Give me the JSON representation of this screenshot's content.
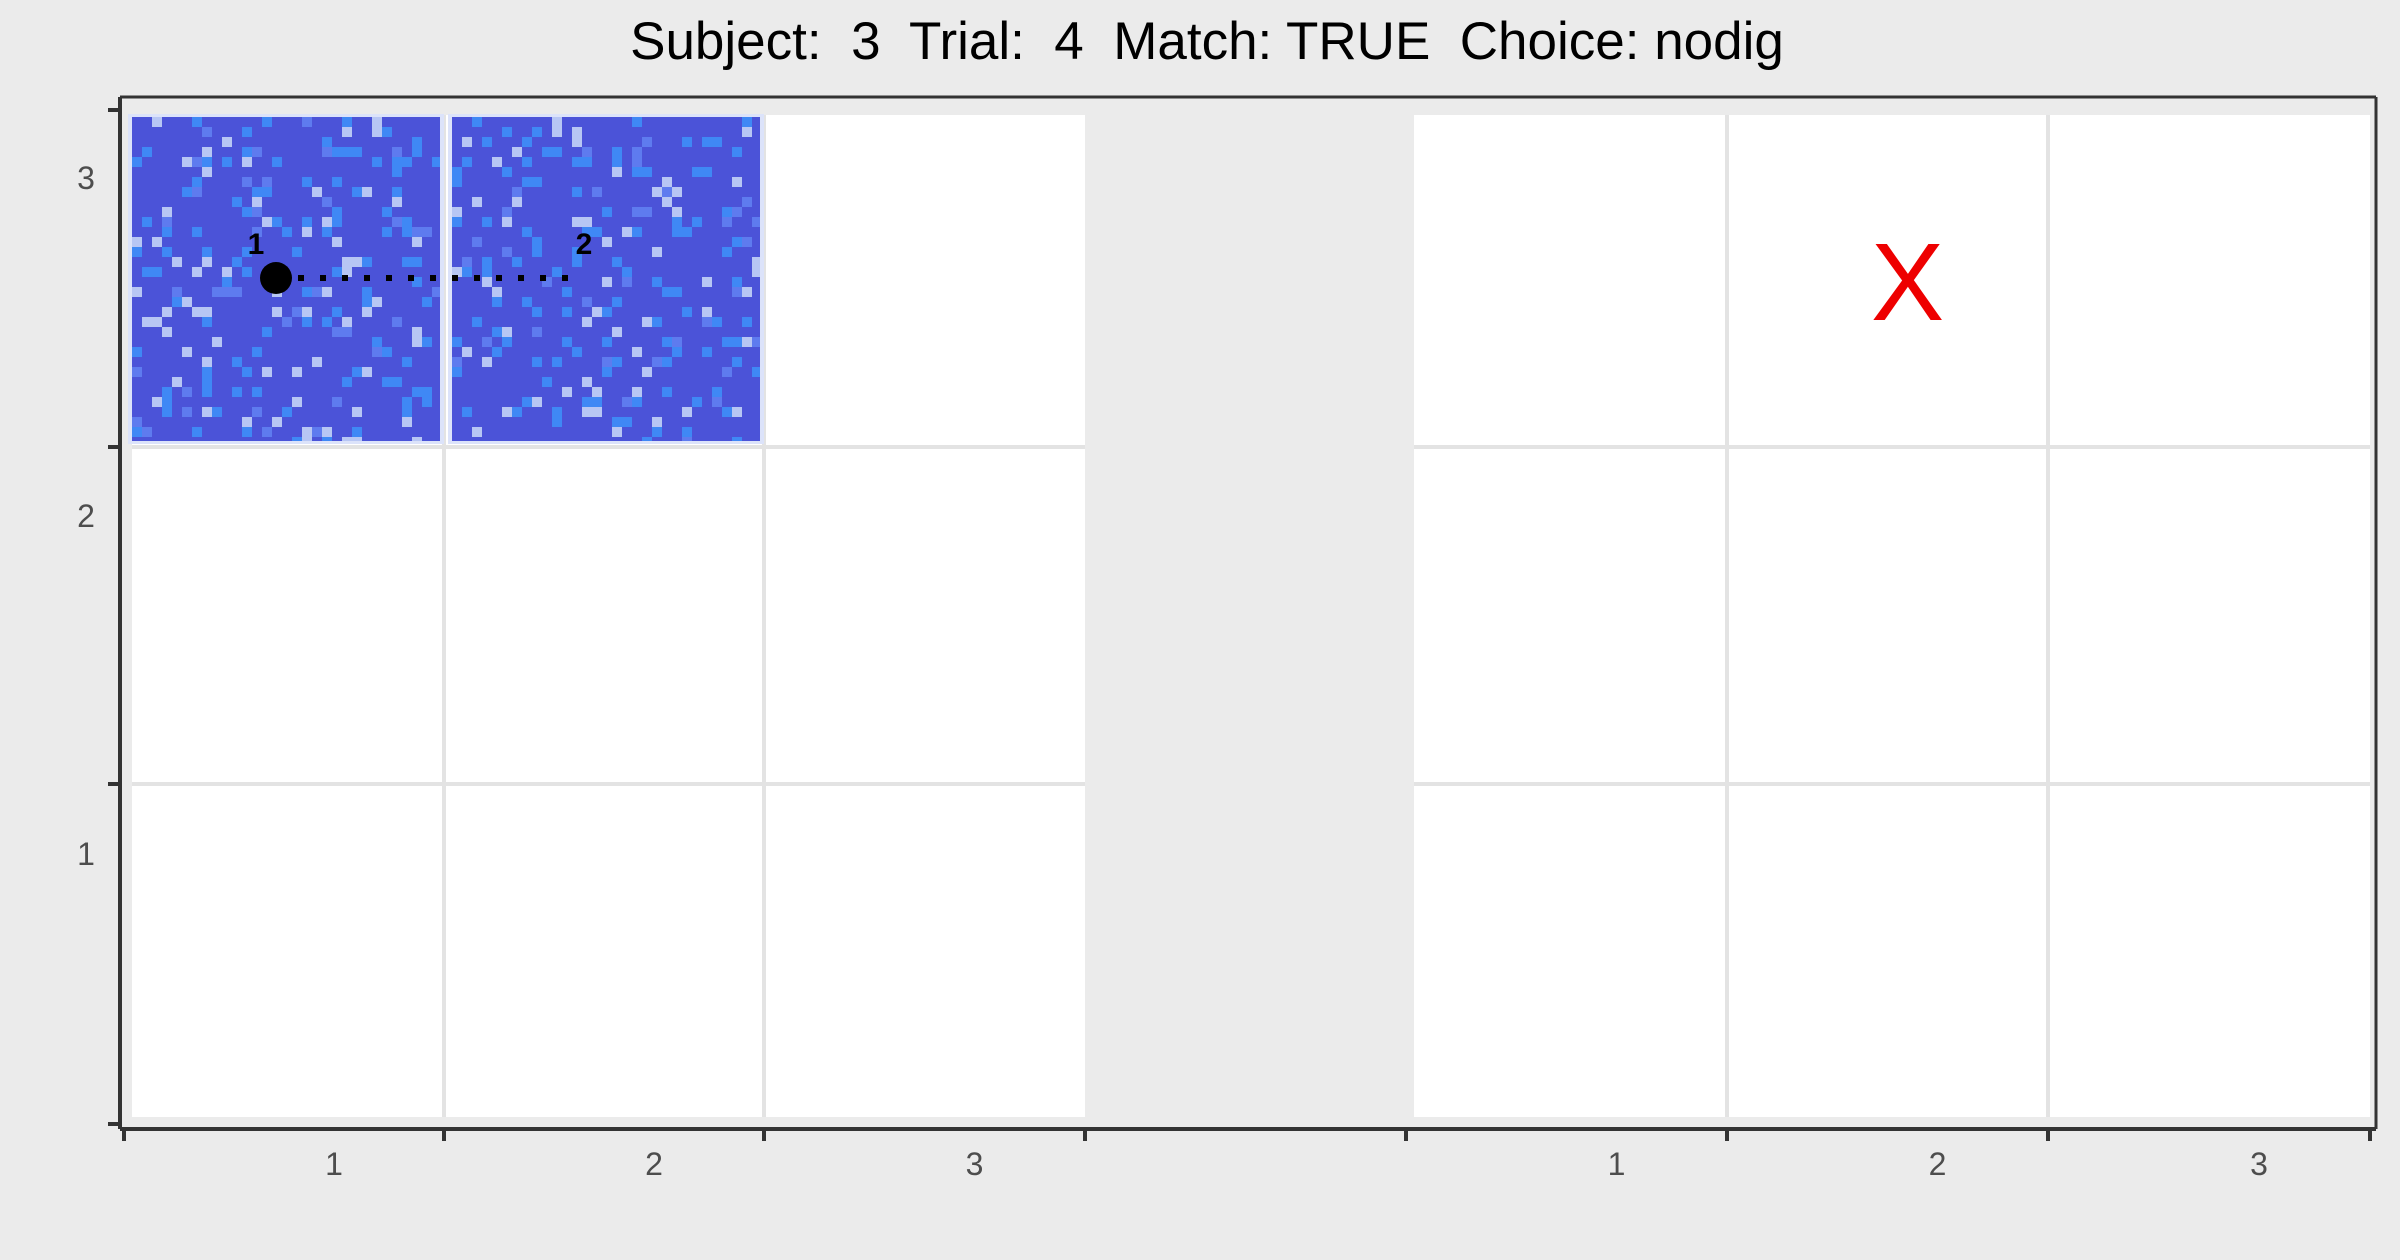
{
  "title": "Subject:  3  Trial:  4  Match: TRUE  Choice: nodig",
  "chart_data": {
    "type": "heatmap",
    "title": "Subject:  3  Trial:  4  Match: TRUE  Choice: nodig",
    "xlabel": "",
    "ylabel": "",
    "panels": [
      {
        "x_ticks": [
          "1",
          "2",
          "3"
        ]
      },
      {
        "x_ticks": [
          "1",
          "2",
          "3"
        ]
      }
    ],
    "y_ticks": [
      "1",
      "2",
      "3"
    ],
    "grid": true,
    "textured_tiles": [
      {
        "panel": 1,
        "col": 1,
        "row": 3
      },
      {
        "panel": 1,
        "col": 2,
        "row": 3
      }
    ],
    "path": {
      "panel": 1,
      "row": 3,
      "points": [
        {
          "label": "1",
          "col": 1
        },
        {
          "label": "2",
          "col": 2
        }
      ],
      "line_style": "dotted"
    },
    "markers": [
      {
        "panel": 2,
        "col": 2,
        "row": 3,
        "symbol": "X",
        "color": "#EE0000"
      }
    ],
    "colors": {
      "background": "#EBEBEB",
      "cell": "#FFFFFF",
      "tile_base": "#4B53D8",
      "tile_mid": "#3F88F5",
      "tile_light": "#B7C6F4",
      "marker": "#EE0000",
      "axis": "#333333"
    }
  }
}
